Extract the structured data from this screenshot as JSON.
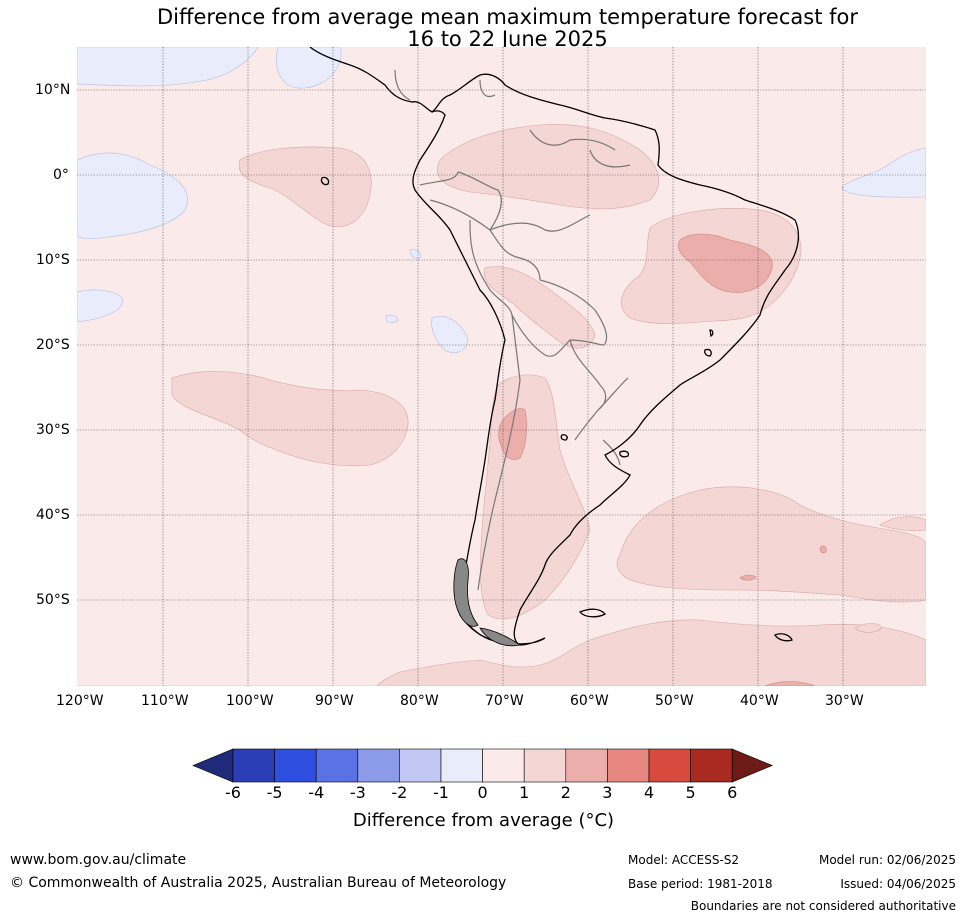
{
  "title": {
    "line1": "Difference from average mean maximum temperature forecast for",
    "line2": "16 to 22 June 2025"
  },
  "map": {
    "lat_labels": [
      "10°N",
      "0°",
      "10°S",
      "20°S",
      "30°S",
      "40°S",
      "50°S"
    ],
    "lon_labels": [
      "120°W",
      "110°W",
      "100°W",
      "90°W",
      "80°W",
      "70°W",
      "60°W",
      "50°W",
      "40°W",
      "30°W"
    ],
    "colors": {
      "neg1_0": "#e9ecfb",
      "pos0_1": "#fbeaea",
      "pos1_2": "#f4d6d5",
      "pos2_3": "#ecaeab",
      "pos3_4": "#e88680",
      "grid": "#555555",
      "coast": "#000000",
      "border": "#777777"
    }
  },
  "colorbar": {
    "ticks": [
      "-6",
      "-5",
      "-4",
      "-3",
      "-2",
      "-1",
      "0",
      "1",
      "2",
      "3",
      "4",
      "5",
      "6"
    ],
    "colors": [
      "#1f2b7a",
      "#2c3eb5",
      "#2f4fe0",
      "#5a72e6",
      "#8b9be9",
      "#c1c8f3",
      "#e9ecfb",
      "#fbeaea",
      "#f4d6d5",
      "#ecaeab",
      "#e88680",
      "#d94a3e",
      "#a82a21",
      "#6e1a16"
    ],
    "label": "Difference from average (°C)"
  },
  "footer": {
    "website": "www.bom.gov.au/climate",
    "copyright": "© Commonwealth of Australia 2025, Australian Bureau of Meteorology",
    "model": "Model: ACCESS-S2",
    "base_period": "Base period: 1981-2018",
    "model_run": "Model run: 02/06/2025",
    "issued": "Issued: 04/06/2025",
    "disclaimer": "Boundaries are not considered authoritative"
  }
}
